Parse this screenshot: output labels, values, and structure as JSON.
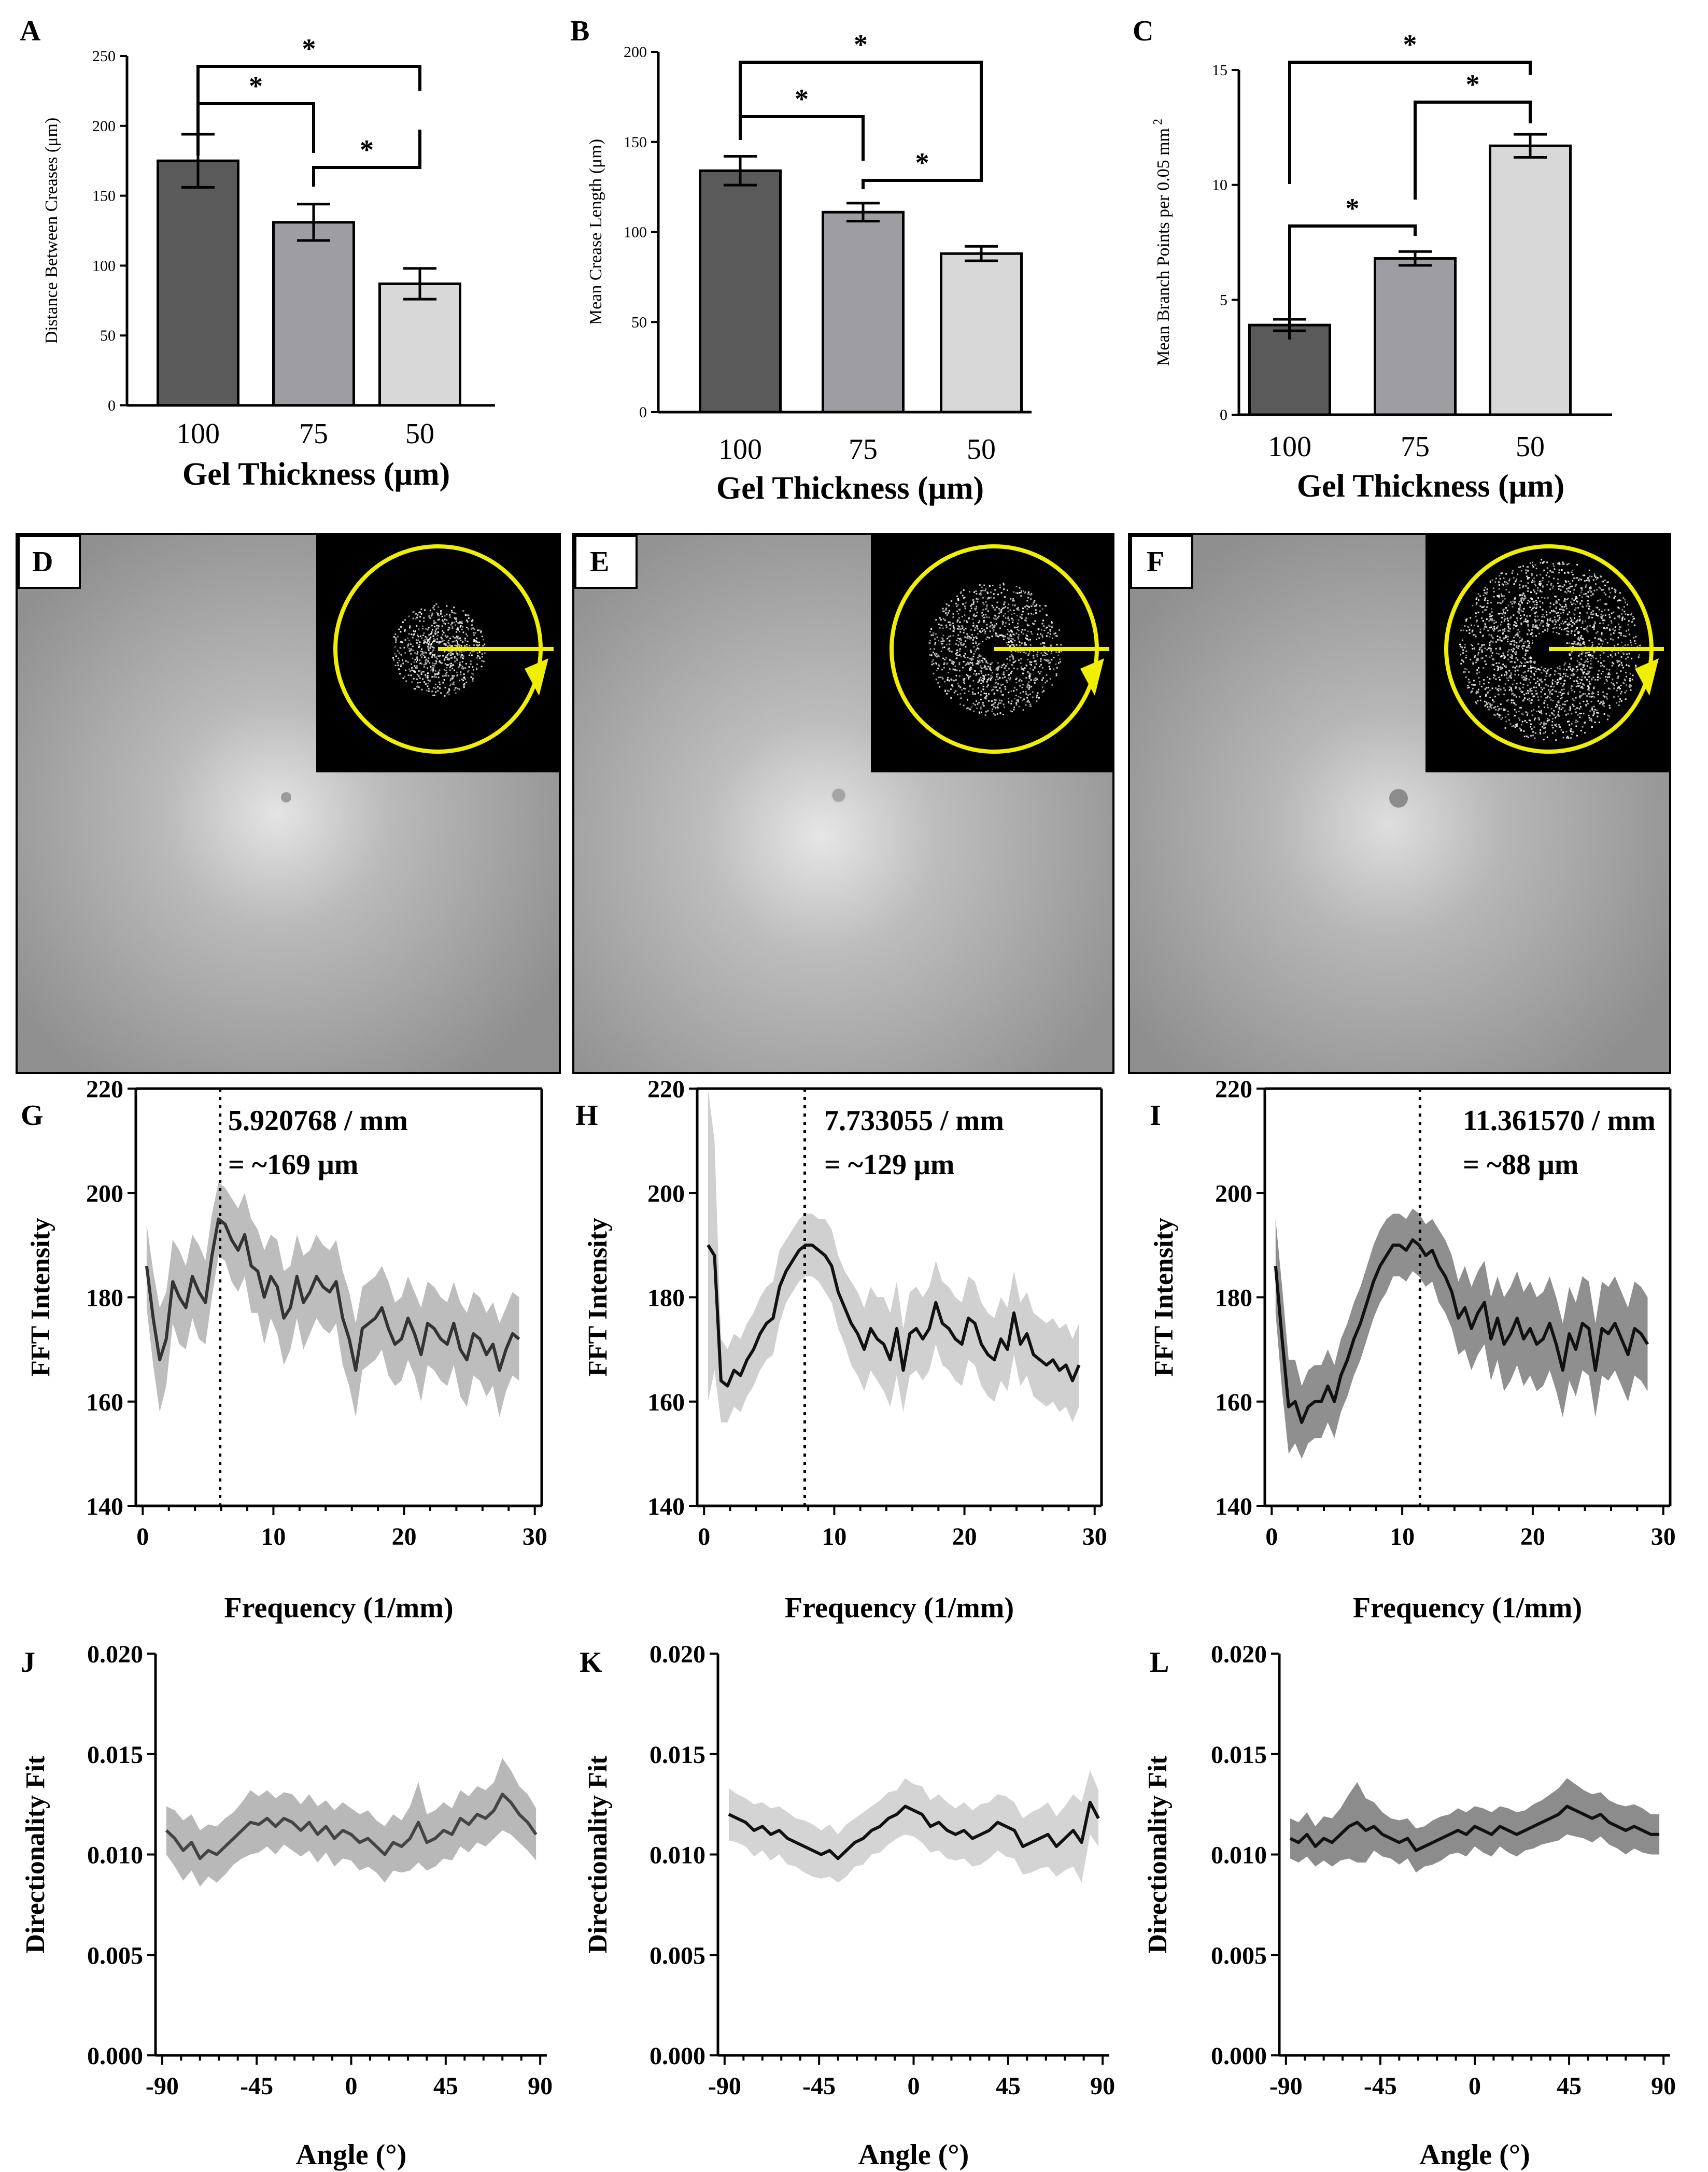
{
  "chart_data": [
    {
      "panel": "A",
      "type": "bar",
      "categories": [
        "100",
        "75",
        "50"
      ],
      "values": [
        175,
        131,
        87
      ],
      "errors": [
        19,
        13,
        11
      ],
      "colors": [
        "#5a5a5a",
        "#9d9da2",
        "#d8d8d8"
      ],
      "ylabel": "Distance Between Creases (μm)",
      "xlabel": "Gel Thickness (μm)",
      "ylim": [
        0,
        250
      ],
      "yticks": [
        "0",
        "50",
        "100",
        "150",
        "200",
        "250"
      ],
      "significance": [
        "*",
        "*",
        "*"
      ]
    },
    {
      "panel": "B",
      "type": "bar",
      "categories": [
        "100",
        "75",
        "50"
      ],
      "values": [
        134,
        111,
        88
      ],
      "errors": [
        8,
        5,
        4
      ],
      "colors": [
        "#5a5a5a",
        "#9d9da2",
        "#d8d8d8"
      ],
      "ylabel": "Mean Crease Length (μm)",
      "xlabel": "Gel Thickness (μm)",
      "ylim": [
        0,
        200
      ],
      "yticks": [
        "0",
        "50",
        "100",
        "150",
        "200"
      ],
      "significance": [
        "*",
        "*",
        "*"
      ]
    },
    {
      "panel": "C",
      "type": "bar",
      "categories": [
        "100",
        "75",
        "50"
      ],
      "values": [
        3.9,
        6.8,
        11.7
      ],
      "errors": [
        0.25,
        0.3,
        0.5
      ],
      "colors": [
        "#5a5a5a",
        "#9d9da2",
        "#d8d8d8"
      ],
      "ylabel": "Mean Branch Points per 0.05 mm",
      "ylabel_sup": "2",
      "xlabel": "Gel Thickness (μm)",
      "ylim": [
        0,
        15
      ],
      "yticks": [
        "0",
        "5",
        "10",
        "15"
      ],
      "significance": [
        "*",
        "*",
        "*"
      ]
    },
    {
      "panel": "G",
      "type": "line",
      "ylabel": "FFT Intensity",
      "xlabel": "Frequency (1/mm)",
      "xlim": [
        0,
        30
      ],
      "ylim": [
        140,
        220
      ],
      "xticks": [
        "0",
        "10",
        "20",
        "30"
      ],
      "yticks": [
        "140",
        "160",
        "180",
        "200",
        "220"
      ],
      "peak_x": 5.920768,
      "annotation": [
        "5.920768 / mm",
        "= ~169 μm"
      ],
      "line_color": "#333333",
      "band_color": "#bdbdbd",
      "x": [
        0.3,
        0.8,
        1.3,
        1.8,
        2.3,
        2.8,
        3.3,
        3.8,
        4.3,
        4.8,
        5.3,
        5.8,
        6.3,
        6.8,
        7.3,
        7.8,
        8.3,
        8.8,
        9.3,
        9.8,
        10.3,
        10.8,
        11.3,
        11.8,
        12.3,
        12.8,
        13.3,
        13.8,
        14.3,
        14.8,
        15.3,
        15.8,
        16.3,
        16.8,
        17.3,
        17.8,
        18.3,
        18.8,
        19.3,
        19.8,
        20.3,
        20.8,
        21.3,
        21.8,
        22.3,
        22.8,
        23.3,
        23.8,
        24.3,
        24.8,
        25.3,
        25.8,
        26.3,
        26.8,
        27.3,
        27.8,
        28.3,
        28.8
      ],
      "y": [
        186,
        176,
        168,
        172,
        183,
        180,
        178,
        184,
        181,
        179,
        188,
        195,
        194,
        191,
        189,
        192,
        186,
        185,
        180,
        184,
        182,
        176,
        178,
        184,
        179,
        181,
        184,
        182,
        181,
        183,
        176,
        172,
        166,
        174,
        175,
        176,
        178,
        174,
        171,
        172,
        176,
        173,
        169,
        175,
        174,
        172,
        171,
        175,
        170,
        168,
        173,
        172,
        169,
        171,
        166,
        170,
        173,
        172
      ],
      "band": [
        8,
        9,
        10,
        9,
        8,
        9,
        8,
        8,
        9,
        8,
        8,
        7,
        7,
        8,
        8,
        8,
        9,
        8,
        9,
        8,
        9,
        9,
        8,
        8,
        9,
        8,
        8,
        8,
        8,
        8,
        9,
        9,
        9,
        8,
        8,
        8,
        8,
        9,
        8,
        8,
        8,
        8,
        9,
        8,
        8,
        8,
        8,
        8,
        9,
        9,
        8,
        8,
        8,
        8,
        9,
        8,
        8,
        8
      ]
    },
    {
      "panel": "H",
      "type": "line",
      "ylabel": "FFT Intensity",
      "xlabel": "Frequency (1/mm)",
      "xlim": [
        0,
        30
      ],
      "ylim": [
        140,
        220
      ],
      "xticks": [
        "0",
        "10",
        "20",
        "30"
      ],
      "yticks": [
        "140",
        "160",
        "180",
        "200",
        "220"
      ],
      "peak_x": 7.733055,
      "annotation": [
        "7.733055 / mm",
        "= ~129 μm"
      ],
      "line_color": "#111111",
      "band_color": "#d0d0d0",
      "x": [
        0.3,
        0.8,
        1.3,
        1.8,
        2.3,
        2.8,
        3.3,
        3.8,
        4.3,
        4.8,
        5.3,
        5.8,
        6.3,
        6.8,
        7.3,
        7.8,
        8.3,
        8.8,
        9.3,
        9.8,
        10.3,
        10.8,
        11.3,
        11.8,
        12.3,
        12.8,
        13.3,
        13.8,
        14.3,
        14.8,
        15.3,
        15.8,
        16.3,
        16.8,
        17.3,
        17.8,
        18.3,
        18.8,
        19.3,
        19.8,
        20.3,
        20.8,
        21.3,
        21.8,
        22.3,
        22.8,
        23.3,
        23.8,
        24.3,
        24.8,
        25.3,
        25.8,
        26.3,
        26.8,
        27.3,
        27.8,
        28.3,
        28.8
      ],
      "y": [
        190,
        188,
        164,
        163,
        166,
        165,
        168,
        170,
        173,
        175,
        176,
        182,
        185,
        187,
        189,
        190,
        190,
        189,
        188,
        186,
        181,
        178,
        175,
        173,
        170,
        174,
        172,
        171,
        168,
        174,
        166,
        173,
        174,
        172,
        174,
        179,
        175,
        174,
        172,
        171,
        176,
        175,
        171,
        169,
        168,
        172,
        170,
        177,
        171,
        173,
        169,
        168,
        167,
        168,
        166,
        167,
        164,
        167
      ],
      "band": [
        30,
        22,
        8,
        7,
        7,
        7,
        7,
        7,
        7,
        7,
        7,
        7,
        6,
        6,
        6,
        6,
        6,
        6,
        7,
        7,
        7,
        7,
        8,
        8,
        8,
        8,
        8,
        9,
        9,
        9,
        8,
        8,
        8,
        8,
        8,
        8,
        8,
        8,
        8,
        8,
        8,
        8,
        8,
        8,
        8,
        8,
        8,
        8,
        8,
        8,
        8,
        8,
        8,
        8,
        8,
        8,
        8,
        8
      ]
    },
    {
      "panel": "I",
      "type": "line",
      "ylabel": "FFT Intensity",
      "xlabel": "Frequency (1/mm)",
      "xlim": [
        0,
        30
      ],
      "ylim": [
        140,
        220
      ],
      "xticks": [
        "0",
        "10",
        "20",
        "30"
      ],
      "yticks": [
        "140",
        "160",
        "180",
        "200",
        "220"
      ],
      "peak_x": 11.36157,
      "annotation": [
        "11.361570 / mm",
        "= ~88 μm"
      ],
      "line_color": "#111111",
      "band_color": "#8f8f8f",
      "x": [
        0.3,
        0.8,
        1.3,
        1.8,
        2.3,
        2.8,
        3.3,
        3.8,
        4.3,
        4.8,
        5.3,
        5.8,
        6.3,
        6.8,
        7.3,
        7.8,
        8.3,
        8.8,
        9.3,
        9.8,
        10.3,
        10.8,
        11.3,
        11.8,
        12.3,
        12.8,
        13.3,
        13.8,
        14.3,
        14.8,
        15.3,
        15.8,
        16.3,
        16.8,
        17.3,
        17.8,
        18.3,
        18.8,
        19.3,
        19.8,
        20.3,
        20.8,
        21.3,
        21.8,
        22.3,
        22.8,
        23.3,
        23.8,
        24.3,
        24.8,
        25.3,
        25.8,
        26.3,
        26.8,
        27.3,
        27.8,
        28.3,
        28.8
      ],
      "y": [
        186,
        172,
        159,
        160,
        156,
        159,
        160,
        160,
        163,
        160,
        165,
        168,
        172,
        175,
        179,
        183,
        186,
        188,
        190,
        190,
        189,
        191,
        190,
        188,
        189,
        186,
        184,
        181,
        176,
        178,
        174,
        177,
        179,
        172,
        176,
        171,
        173,
        176,
        172,
        174,
        171,
        172,
        175,
        171,
        166,
        173,
        170,
        175,
        174,
        166,
        174,
        173,
        175,
        172,
        169,
        174,
        173,
        171
      ],
      "band": [
        9,
        10,
        9,
        8,
        7,
        7,
        7,
        7,
        7,
        7,
        7,
        7,
        7,
        7,
        7,
        7,
        7,
        7,
        6,
        6,
        6,
        6,
        6,
        6,
        6,
        7,
        7,
        7,
        7,
        8,
        8,
        8,
        8,
        8,
        8,
        9,
        9,
        9,
        9,
        9,
        9,
        9,
        9,
        9,
        9,
        9,
        9,
        9,
        9,
        9,
        9,
        9,
        9,
        9,
        9,
        9,
        9,
        9
      ]
    },
    {
      "panel": "J",
      "type": "line",
      "ylabel": "Directionality Fit",
      "xlabel": "Angle (°)",
      "xlim": [
        -90,
        90
      ],
      "ylim": [
        0,
        0.02
      ],
      "xticks": [
        "-90",
        "-45",
        "0",
        "45",
        "90"
      ],
      "yticks": [
        "0.000",
        "0.005",
        "0.010",
        "0.015",
        "0.020"
      ],
      "line_color": "#444444",
      "band_color": "#b8b8b8",
      "x": [
        -88,
        -84,
        -80,
        -76,
        -72,
        -68,
        -64,
        -60,
        -56,
        -52,
        -48,
        -44,
        -40,
        -36,
        -32,
        -28,
        -24,
        -20,
        -16,
        -12,
        -8,
        -4,
        0,
        4,
        8,
        12,
        16,
        20,
        24,
        28,
        32,
        36,
        40,
        44,
        48,
        52,
        56,
        60,
        64,
        68,
        72,
        76,
        80,
        84,
        88
      ],
      "y": [
        0.0112,
        0.0108,
        0.0102,
        0.0106,
        0.0098,
        0.0102,
        0.01,
        0.0104,
        0.0108,
        0.0112,
        0.0116,
        0.0115,
        0.0118,
        0.0114,
        0.0118,
        0.0116,
        0.0112,
        0.0116,
        0.011,
        0.0114,
        0.0108,
        0.0112,
        0.011,
        0.0106,
        0.0108,
        0.0104,
        0.01,
        0.0106,
        0.0104,
        0.0108,
        0.0116,
        0.0106,
        0.0108,
        0.0112,
        0.011,
        0.0118,
        0.0115,
        0.012,
        0.0118,
        0.0122,
        0.013,
        0.0126,
        0.012,
        0.0116,
        0.011
      ],
      "band": [
        0.0012,
        0.0014,
        0.0015,
        0.0014,
        0.0014,
        0.0013,
        0.0014,
        0.0014,
        0.0013,
        0.0014,
        0.0016,
        0.0014,
        0.0014,
        0.0014,
        0.0013,
        0.0014,
        0.0013,
        0.0014,
        0.0014,
        0.0013,
        0.0014,
        0.0014,
        0.0013,
        0.0014,
        0.0014,
        0.0013,
        0.0014,
        0.0014,
        0.0013,
        0.0016,
        0.002,
        0.0014,
        0.0014,
        0.0014,
        0.0013,
        0.0014,
        0.0014,
        0.0014,
        0.0014,
        0.0014,
        0.0018,
        0.0016,
        0.0014,
        0.0014,
        0.0013
      ]
    },
    {
      "panel": "K",
      "type": "line",
      "ylabel": "Directionality Fit",
      "xlabel": "Angle (°)",
      "xlim": [
        -90,
        90
      ],
      "ylim": [
        0,
        0.02
      ],
      "xticks": [
        "-90",
        "-45",
        "0",
        "45",
        "90"
      ],
      "yticks": [
        "0.000",
        "0.005",
        "0.010",
        "0.015",
        "0.020"
      ],
      "line_color": "#111111",
      "band_color": "#d4d4d4",
      "x": [
        -88,
        -84,
        -80,
        -76,
        -72,
        -68,
        -64,
        -60,
        -56,
        -52,
        -48,
        -44,
        -40,
        -36,
        -32,
        -28,
        -24,
        -20,
        -16,
        -12,
        -8,
        -4,
        0,
        4,
        8,
        12,
        16,
        20,
        24,
        28,
        32,
        36,
        40,
        44,
        48,
        52,
        56,
        60,
        64,
        68,
        72,
        76,
        80,
        84,
        88
      ],
      "y": [
        0.012,
        0.0118,
        0.0116,
        0.0112,
        0.0114,
        0.011,
        0.0112,
        0.0108,
        0.0106,
        0.0104,
        0.0102,
        0.01,
        0.0102,
        0.0098,
        0.0102,
        0.0106,
        0.0108,
        0.0112,
        0.0114,
        0.0118,
        0.012,
        0.0124,
        0.0122,
        0.012,
        0.0114,
        0.0116,
        0.0112,
        0.011,
        0.0112,
        0.0108,
        0.011,
        0.0112,
        0.0116,
        0.0114,
        0.0112,
        0.0104,
        0.0106,
        0.0108,
        0.011,
        0.0104,
        0.0108,
        0.0112,
        0.0106,
        0.0126,
        0.0118
      ],
      "band": [
        0.0013,
        0.0012,
        0.0012,
        0.0013,
        0.0012,
        0.0013,
        0.0012,
        0.0013,
        0.0012,
        0.0013,
        0.0013,
        0.0012,
        0.0013,
        0.0012,
        0.0013,
        0.0012,
        0.0013,
        0.0012,
        0.0013,
        0.0013,
        0.0012,
        0.0014,
        0.0013,
        0.0014,
        0.0013,
        0.0014,
        0.0014,
        0.0013,
        0.0014,
        0.0014,
        0.0015,
        0.0014,
        0.0014,
        0.0015,
        0.0014,
        0.0014,
        0.0015,
        0.0015,
        0.0016,
        0.0015,
        0.0016,
        0.0018,
        0.002,
        0.0016,
        0.0014
      ]
    },
    {
      "panel": "L",
      "type": "line",
      "ylabel": "Directionality Fit",
      "xlabel": "Angle (°)",
      "xlim": [
        -90,
        90
      ],
      "ylim": [
        0,
        0.02
      ],
      "xticks": [
        "-90",
        "-45",
        "0",
        "45",
        "90"
      ],
      "yticks": [
        "0.000",
        "0.005",
        "0.010",
        "0.015",
        "0.020"
      ],
      "line_color": "#111111",
      "band_color": "#8c8c8c",
      "x": [
        -88,
        -84,
        -80,
        -76,
        -72,
        -68,
        -64,
        -60,
        -56,
        -52,
        -48,
        -44,
        -40,
        -36,
        -32,
        -28,
        -24,
        -20,
        -16,
        -12,
        -8,
        -4,
        0,
        4,
        8,
        12,
        16,
        20,
        24,
        28,
        32,
        36,
        40,
        44,
        48,
        52,
        56,
        60,
        64,
        68,
        72,
        76,
        80,
        84,
        88
      ],
      "y": [
        0.0108,
        0.0106,
        0.011,
        0.0104,
        0.0108,
        0.0106,
        0.011,
        0.0114,
        0.0116,
        0.0112,
        0.0114,
        0.011,
        0.0108,
        0.0106,
        0.0108,
        0.0102,
        0.0104,
        0.0106,
        0.0108,
        0.011,
        0.0112,
        0.011,
        0.0114,
        0.0112,
        0.011,
        0.0114,
        0.0112,
        0.011,
        0.0112,
        0.0114,
        0.0116,
        0.0118,
        0.012,
        0.0124,
        0.0122,
        0.012,
        0.0118,
        0.012,
        0.0116,
        0.0114,
        0.0112,
        0.0114,
        0.0112,
        0.011,
        0.011
      ],
      "band": [
        0.001,
        0.001,
        0.0011,
        0.001,
        0.0011,
        0.0012,
        0.0013,
        0.0016,
        0.002,
        0.0016,
        0.0012,
        0.0011,
        0.001,
        0.0011,
        0.001,
        0.0011,
        0.001,
        0.0011,
        0.0011,
        0.001,
        0.0011,
        0.0011,
        0.001,
        0.0011,
        0.0011,
        0.001,
        0.0011,
        0.0011,
        0.001,
        0.0011,
        0.0011,
        0.0012,
        0.0013,
        0.0014,
        0.0013,
        0.0012,
        0.0012,
        0.0011,
        0.0011,
        0.0011,
        0.0012,
        0.0011,
        0.0011,
        0.001,
        0.001
      ]
    }
  ],
  "image_panels": [
    {
      "label": "D",
      "ring_intensity": 0.35
    },
    {
      "label": "E",
      "ring_intensity": 0.5
    },
    {
      "label": "F",
      "ring_intensity": 0.75
    }
  ]
}
